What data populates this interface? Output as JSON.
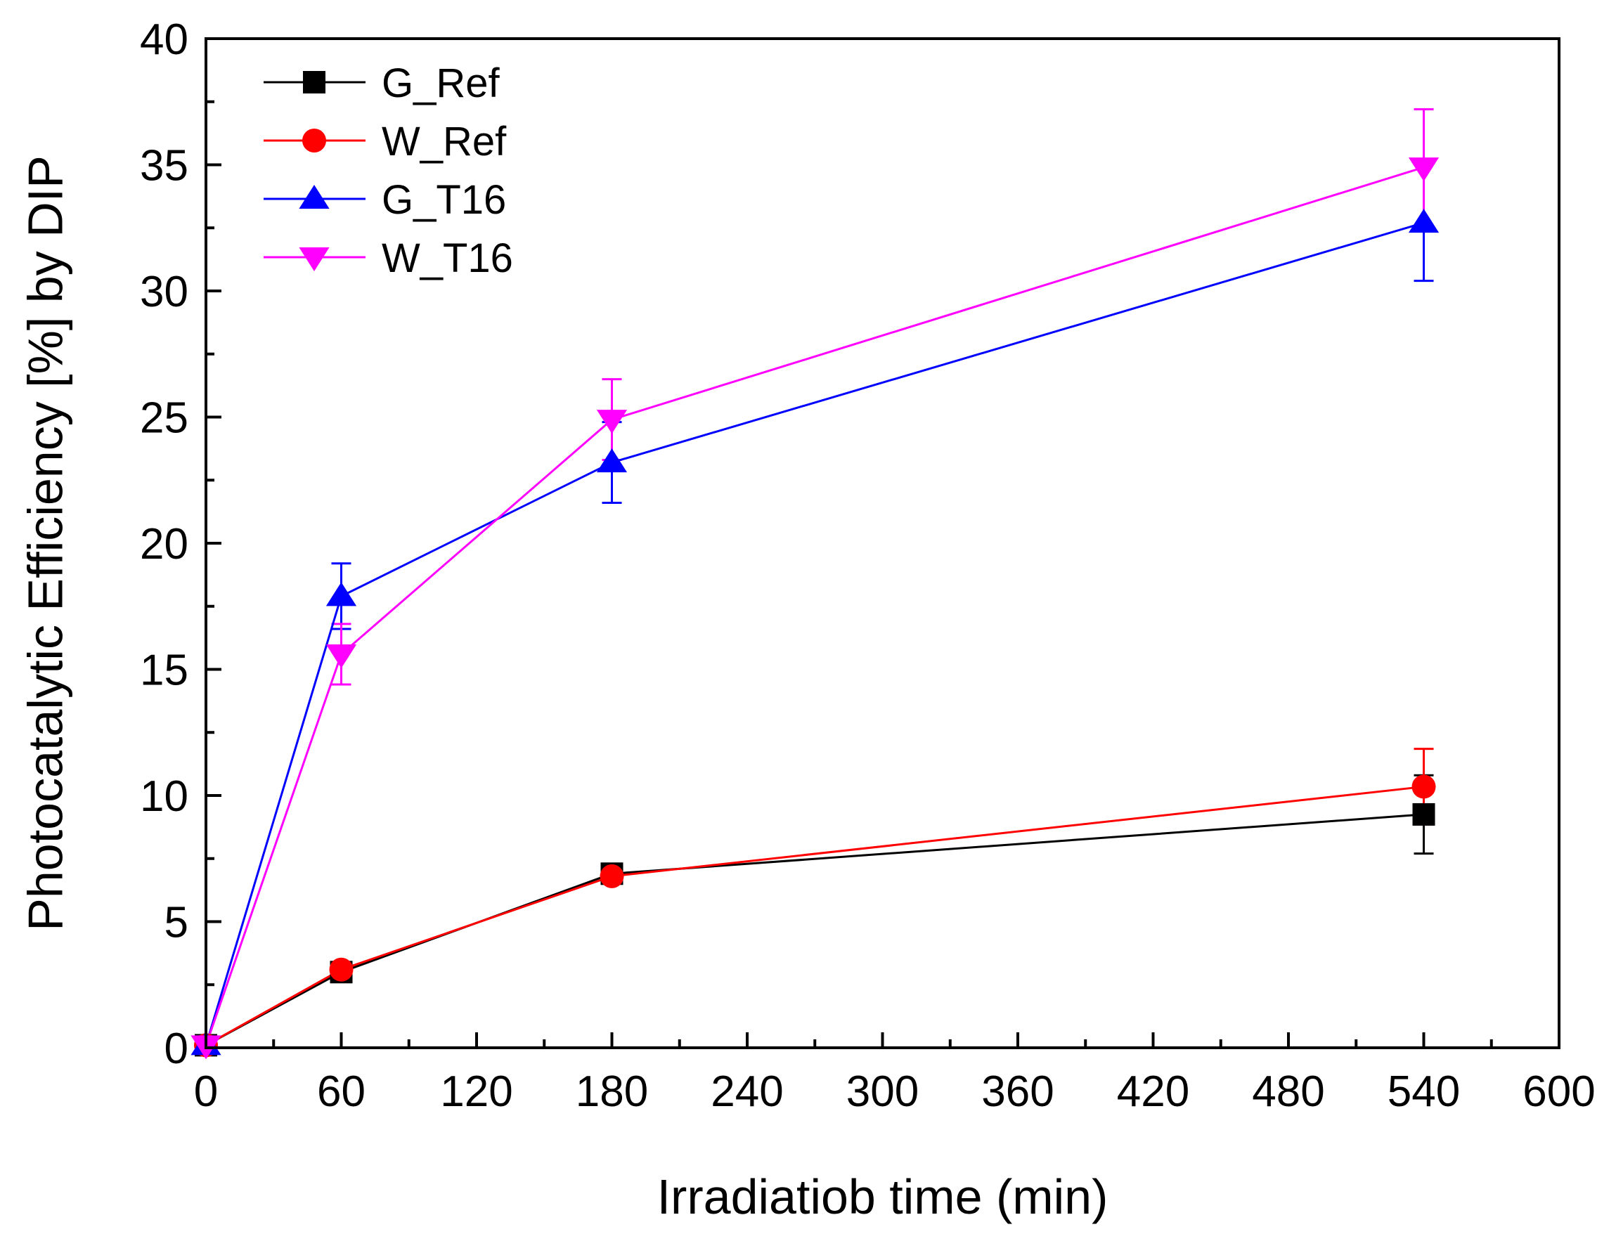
{
  "chart_data": {
    "type": "line",
    "title": "",
    "xlabel": "Irradiatiob time (min)",
    "ylabel": "Photocatalytic Efficiency [%] by DIP",
    "xlim": [
      0,
      600
    ],
    "ylim": [
      0,
      40
    ],
    "xticks": [
      0,
      60,
      120,
      180,
      240,
      300,
      360,
      420,
      480,
      540,
      600
    ],
    "yticks": [
      0,
      5,
      10,
      15,
      20,
      25,
      30,
      35,
      40
    ],
    "legend_position": "top-left",
    "grid": false,
    "x": [
      0,
      60,
      180,
      540
    ],
    "series": [
      {
        "name": "G_Ref",
        "color": "#000000",
        "marker": "square",
        "values": [
          0.1,
          3.0,
          6.9,
          9.25
        ],
        "errors": [
          0,
          0.2,
          0.2,
          1.55
        ]
      },
      {
        "name": "W_Ref",
        "color": "#ff0000",
        "marker": "circle",
        "values": [
          0.1,
          3.1,
          6.8,
          10.35
        ],
        "errors": [
          0,
          0.2,
          0.2,
          1.5
        ]
      },
      {
        "name": "G_T16",
        "color": "#0000ff",
        "marker": "triangle-up",
        "values": [
          0.1,
          17.9,
          23.2,
          32.7
        ],
        "errors": [
          0,
          1.3,
          1.6,
          2.3
        ]
      },
      {
        "name": "W_T16",
        "color": "#ff00ff",
        "marker": "triangle-down",
        "values": [
          0.1,
          15.6,
          24.9,
          34.9
        ],
        "errors": [
          0,
          1.2,
          1.6,
          2.3
        ]
      }
    ]
  }
}
